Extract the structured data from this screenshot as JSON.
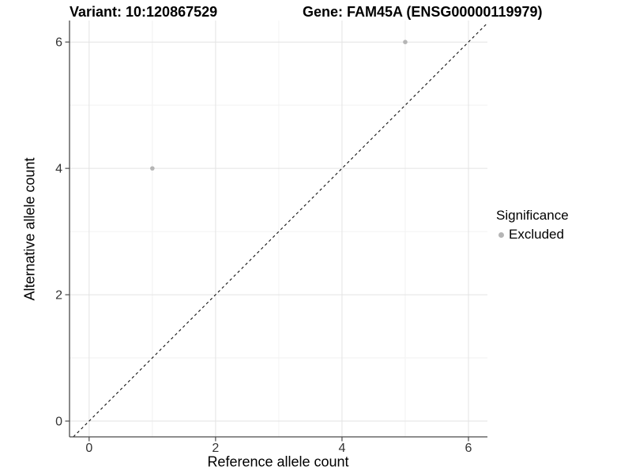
{
  "chart_data": {
    "type": "scatter",
    "title_left": "Variant: 10:120867529",
    "title_right": "Gene: FAM45A (ENSG00000119979)",
    "xlabel": "Reference allele count",
    "ylabel": "Alternative allele count",
    "xlim": [
      -0.31,
      6.3
    ],
    "ylim": [
      -0.25,
      6.34
    ],
    "xticks": [
      0,
      2,
      4,
      6
    ],
    "yticks": [
      0,
      2,
      4,
      6
    ],
    "xticks_minor": [
      1,
      3,
      5
    ],
    "yticks_minor": [
      1,
      3,
      5
    ],
    "grid": true,
    "series": [
      {
        "name": "Excluded",
        "color": "#b5b5b5",
        "points": [
          {
            "x": 1,
            "y": 4
          },
          {
            "x": 5,
            "y": 6
          }
        ]
      }
    ],
    "reference_line": {
      "style": "dashed",
      "slope": 1,
      "intercept": 0,
      "color": "#111111"
    },
    "legend": {
      "position": "right",
      "title": "Significance",
      "items": [
        {
          "label": "Excluded",
          "color": "#b5b5b5",
          "marker": "dot"
        }
      ]
    },
    "colors": {
      "background": "#ffffff",
      "grid_major": "#e3e3e3",
      "grid_minor": "#f2f2f2",
      "axis_line": "#4a4a4a",
      "tick_label": "#333333"
    }
  }
}
